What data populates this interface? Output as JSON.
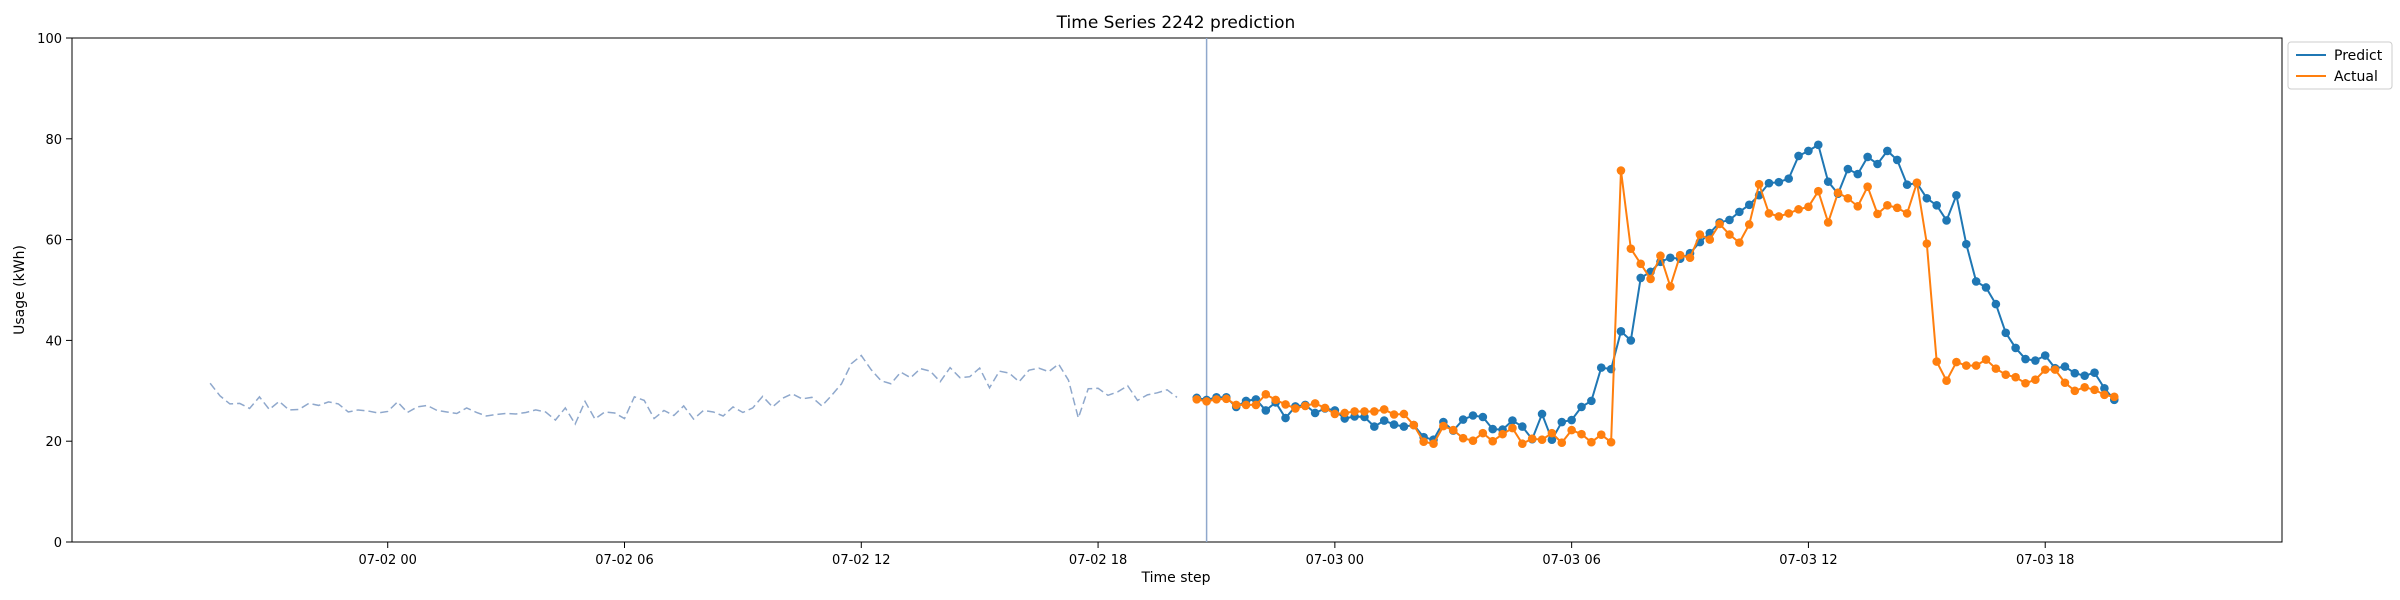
{
  "chart_data": {
    "type": "line",
    "title": "Time Series 2242 prediction",
    "xlabel": "Time step",
    "ylabel": "Usage (kWh)",
    "ylim": [
      0,
      100
    ],
    "xlim": [
      "2024-07-01 16:00",
      "2024-07-04 00:00"
    ],
    "x_tick_labels": [
      "07-02 00",
      "07-02 06",
      "07-02 12",
      "07-02 18",
      "07-03 00",
      "07-03 06",
      "07-03 12",
      "07-03 18"
    ],
    "x_ticks": [
      "2024-07-02 00:00",
      "2024-07-02 06:00",
      "2024-07-02 12:00",
      "2024-07-02 18:00",
      "2024-07-03 00:00",
      "2024-07-03 06:00",
      "2024-07-03 12:00",
      "2024-07-03 18:00"
    ],
    "y_ticks": [
      0,
      20,
      40,
      60,
      80,
      100
    ],
    "grid": false,
    "legend_position": "outside top-right",
    "forecast_start": "2024-07-02 20:45",
    "history": {
      "start": "2024-07-01 19:30",
      "interval_minutes": 15,
      "color": "#8fa8cc",
      "values": [
        31.5,
        29,
        27.4,
        27.5,
        26.5,
        28.8,
        26.3,
        27.9,
        26.2,
        26.3,
        27.5,
        27.1,
        27.8,
        27.4,
        25.8,
        26.2,
        26,
        25.6,
        25.9,
        27.8,
        25.7,
        26.8,
        27.1,
        26.1,
        25.8,
        25.5,
        26.6,
        25.7,
        25,
        25.3,
        25.5,
        25.4,
        25.7,
        26.2,
        25.8,
        24.2,
        26.6,
        23.4,
        27.9,
        24.4,
        25.8,
        25.6,
        24.5,
        28.8,
        28.1,
        24.5,
        26.1,
        25.1,
        27,
        24.4,
        26.1,
        25.8,
        25,
        26.8,
        25.7,
        26.6,
        28.9,
        26.8,
        28.5,
        29.4,
        28.4,
        28.7,
        27,
        29.1,
        31.4,
        35.4,
        37,
        34.2,
        32,
        31.4,
        33.7,
        32.6,
        34.4,
        33.9,
        31.8,
        34.6,
        32.6,
        32.8,
        34.5,
        30.6,
        33.9,
        33.5,
        31.8,
        34.1,
        34.5,
        33.8,
        35.3,
        32.1,
        24.6,
        30.4,
        30.5,
        29.1,
        29.8,
        31,
        28.1,
        29.2,
        29.6,
        30.2,
        28.7
      ]
    },
    "x_start": "2024-07-02 20:30",
    "x_interval_minutes": 15,
    "series": [
      {
        "name": "Predict",
        "color": "#1f77b4",
        "values": [
          28.6,
          28.2,
          28.7,
          28.7,
          26.8,
          28,
          28.3,
          26.1,
          27.7,
          24.6,
          26.9,
          27.2,
          25.6,
          26.5,
          26.1,
          24.5,
          24.9,
          24.8,
          22.9,
          24.1,
          23.3,
          22.9,
          23.2,
          20.8,
          20.3,
          23.8,
          22.1,
          24.3,
          25.1,
          24.8,
          22.4,
          22.3,
          24.1,
          22.9,
          20.4,
          25.4,
          20.3,
          23.8,
          24.2,
          26.8,
          28,
          34.6,
          34.3,
          41.8,
          40,
          52.4,
          53.6,
          55.6,
          56.4,
          56.2,
          57.3,
          59.5,
          61.3,
          63.4,
          63.9,
          65.5,
          66.9,
          68.8,
          71.2,
          71.4,
          72.1,
          76.6,
          77.6,
          78.8,
          71.5,
          69.1,
          74,
          73,
          76.4,
          75,
          77.6,
          75.8,
          70.9,
          71.2,
          68.2,
          66.8,
          63.8,
          68.8,
          59.1,
          51.7,
          50.5,
          47.2,
          41.5,
          38.5,
          36.3,
          36,
          37,
          34.5,
          34.8,
          33.5,
          33,
          33.6,
          30.5,
          28.2
        ]
      },
      {
        "name": "Actual",
        "color": "#ff7f0e",
        "values": [
          28.3,
          27.9,
          28.3,
          28.4,
          27.2,
          27.2,
          27.2,
          29.3,
          28.2,
          27.3,
          26.5,
          27,
          27.5,
          26.6,
          25.4,
          25.6,
          25.9,
          25.9,
          25.9,
          26.3,
          25.3,
          25.4,
          23.2,
          19.9,
          19.5,
          23,
          22.2,
          20.6,
          20.1,
          21.6,
          20,
          21.4,
          22.6,
          19.5,
          20.5,
          20.3,
          21.6,
          19.7,
          22.2,
          21.4,
          19.8,
          21.3,
          19.8,
          73.7,
          58.2,
          55.2,
          52.2,
          56.8,
          50.7,
          56.9,
          56.4,
          61,
          60,
          63.1,
          61,
          59.4,
          63,
          71,
          65.2,
          64.6,
          65.2,
          66,
          66.5,
          69.6,
          63.4,
          69.3,
          68.2,
          66.6,
          70.5,
          65.1,
          66.8,
          66.3,
          65.2,
          71.3,
          59.2,
          35.8,
          32,
          35.7,
          35,
          35,
          36.2,
          34.4,
          33.2,
          32.7,
          31.5,
          32.2,
          34.2,
          34.2,
          31.6,
          30,
          30.7,
          30.2,
          29.2,
          28.8
        ]
      }
    ]
  }
}
